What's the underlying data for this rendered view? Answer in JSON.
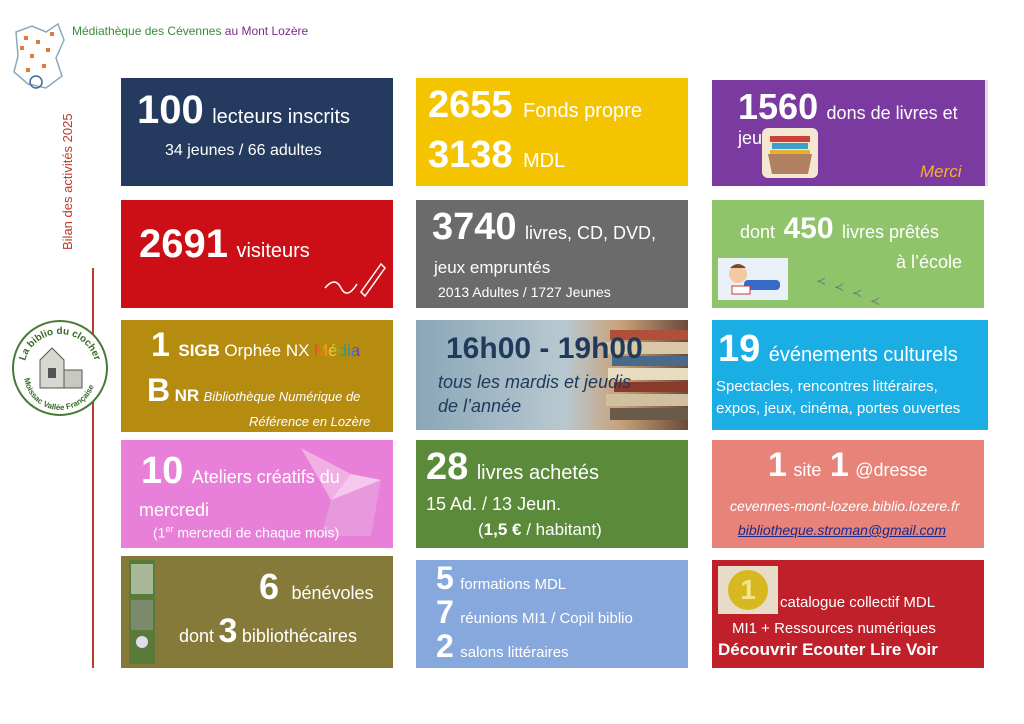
{
  "header": {
    "title_part1": "Médiathèque des Cévennes",
    "title_part2": "au Mont Lozère",
    "vertical_title": "Bilan des activités 2025"
  },
  "logo": {
    "text_top": "La biblio du clocher",
    "text_bottom": "Moissac Vallée Française"
  },
  "tiles": {
    "readers": {
      "number": "100",
      "label": "lecteurs inscrits",
      "detail": "34 jeunes / 66 adultes",
      "color": "#243a5e"
    },
    "collection": {
      "n1": "2655",
      "l1": "Fonds propre",
      "n2": "3138",
      "l2": "MDL",
      "color": "#f5c400"
    },
    "donations": {
      "number": "1560",
      "label": "dons de livres et jeux",
      "thanks": "Merci",
      "color": "#7b3aa0"
    },
    "visitors": {
      "number": "2691",
      "label": "visiteurs",
      "color": "#cc0f17"
    },
    "loans": {
      "number": "3740",
      "label": "livres, CD, DVD,",
      "label2": "jeux empruntés",
      "detail": "2013 Adultes / 1727 Jeunes",
      "color": "#6b6b6b"
    },
    "school": {
      "prefix": "dont",
      "number": "450",
      "label": "livres prêtés",
      "label2": "à l’école",
      "color": "#8fc46b"
    },
    "sigb": {
      "n1": "1",
      "sigb": "SIGB",
      "l1": "Orphée NX",
      "media": "Média",
      "bnr1": "B",
      "bnr2": "NR",
      "bnr_text": "Bibliothèque Numérique de",
      "bnr_text2": "Référence en Lozère",
      "color": "#b58b10"
    },
    "hours": {
      "time": "16h00 - 19h00",
      "detail": "tous les mardis et jeudis",
      "detail2": "de l’année",
      "color": "#8aa7b8"
    },
    "events": {
      "number": "19",
      "label": "événements culturels",
      "detail": "Spectacles, rencontres littéraires,",
      "detail2": "expos, jeux, cinéma, portes ouvertes",
      "color": "#1aaee5"
    },
    "workshops": {
      "number": "10",
      "label": "Ateliers créatifs du",
      "label2": "mercredi",
      "note_pre": "(1",
      "note_sup": "er",
      "note_post": "mercredi de chaque mois)",
      "color": "#e87fd8"
    },
    "purchases": {
      "number": "28",
      "label": "livres achetés",
      "detail": "15 Ad. / 13 Jeun.",
      "price_pre": "(",
      "price": "1,5 €",
      "price_post": "/ habitant)",
      "color": "#5a8a3a"
    },
    "site": {
      "n1": "1",
      "l1": "site",
      "n2": "1",
      "l2": "@dresse",
      "url": "cevennes-mont-lozere.biblio.lozere.fr",
      "email": "bibliotheque.stroman@gmail.com",
      "color": "#e8837a"
    },
    "volunteers": {
      "n1": "6",
      "l1": "bénévoles",
      "pre": "dont",
      "n2": "3",
      "l2": "bibliothécaires",
      "color": "#857a3a"
    },
    "trainings": {
      "n1": "5",
      "l1": "formations MDL",
      "n2": "7",
      "l2": "réunions  MI1 / Copil biblio",
      "n3": "2",
      "l3": "salons littéraires",
      "color": "#86a8dc"
    },
    "catalogue": {
      "badge": "1",
      "l1": "catalogue collectif  MDL",
      "l2": "MI1 + Ressources numériques",
      "l3": "Découvrir Ecouter Lire Voir",
      "color": "#c0202a"
    }
  },
  "colors": {
    "accent_red": "#c0392b",
    "title_green": "#3a8a3a",
    "title_purple": "#7a2a8a"
  }
}
